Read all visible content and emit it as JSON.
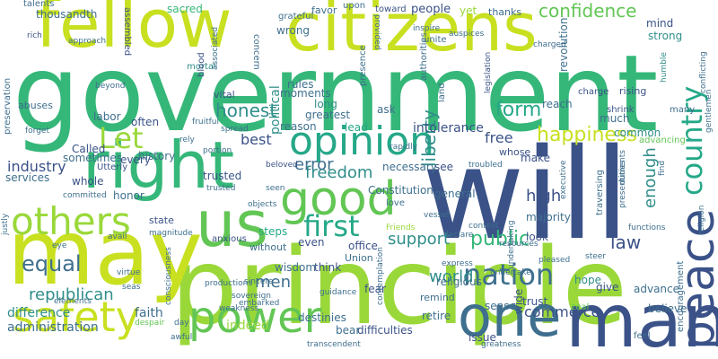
{
  "cloud": {
    "words": [
      "will",
      "government",
      "fellow",
      "citizens",
      "principle",
      "may",
      "man",
      "one",
      "us",
      "right",
      "power",
      "safety",
      "peace",
      "good",
      "opinion",
      "others",
      "nation",
      "Let",
      "first",
      "country",
      "honest",
      "form",
      "confidence",
      "public",
      "support",
      "law",
      "freedom",
      "world",
      "equal",
      "happiness",
      "liberty",
      "enough",
      "error",
      "men",
      "republican",
      "commerce",
      "industry",
      "high",
      "free",
      "best",
      "administration",
      "difference",
      "faith",
      "sacred",
      "favor",
      "people",
      "yet",
      "thanks",
      "upon",
      "toward",
      "talents",
      "thousandth",
      "assembled",
      "grateful",
      "mortal",
      "concern",
      "wrong",
      "rules",
      "political",
      "long",
      "moments",
      "greatest",
      "reason",
      "lead",
      "intolerance",
      "ask",
      "reach",
      "much",
      "mind",
      "strong",
      "rising",
      "charge",
      "humble",
      "many",
      "common",
      "advancing",
      "shrink",
      "Called",
      "history",
      "labor",
      "often",
      "sometimes",
      "services",
      "Utterly",
      "every",
      "whole",
      "honor",
      "state",
      "trusted",
      "steps",
      "even",
      "office",
      "majority",
      "look",
      "Constitution",
      "general",
      "make",
      "necessary",
      "see",
      "think",
      "wisdom",
      "fear",
      "indeed",
      "destinies",
      "difficulties",
      "bear",
      "issue",
      "retire",
      "sense",
      "trust",
      "hope",
      "advance",
      "give",
      "remind",
      "zeal",
      "wide",
      "Union",
      "religious",
      "encouragement",
      "believe",
      "feel",
      "preservation",
      "abuses",
      "beyond",
      "approach",
      "rich",
      "provided",
      "inspire",
      "auspices",
      "legislation",
      "charged",
      "revolution",
      "whose",
      "troubled",
      "presence",
      "unite",
      "authorities",
      "land",
      "vital",
      "blood",
      "associated",
      "spread",
      "portion",
      "rely",
      "forget",
      "fruitful",
      "justly",
      "committed",
      "beloved",
      "seen",
      "trusted",
      "magnitude",
      "objects",
      "without",
      "anxious",
      "sincere",
      "sovereign",
      "productions",
      "weakness",
      "embarked",
      "guidance",
      "contemplation",
      "Friends",
      "express",
      "declare",
      "contest",
      "vessel",
      "executive",
      "pleased",
      "resources",
      "undertake",
      "undertaking",
      "presentiments",
      "find",
      "functions",
      "traversing",
      "duties",
      "religion",
      "gentlemen",
      "conflicting",
      "eye",
      "avail",
      "virtue",
      "consciousness",
      "seas",
      "elements",
      "despair",
      "awful",
      "day",
      "transcendent",
      "greatness",
      "steer",
      "rapidly",
      "love"
    ]
  }
}
